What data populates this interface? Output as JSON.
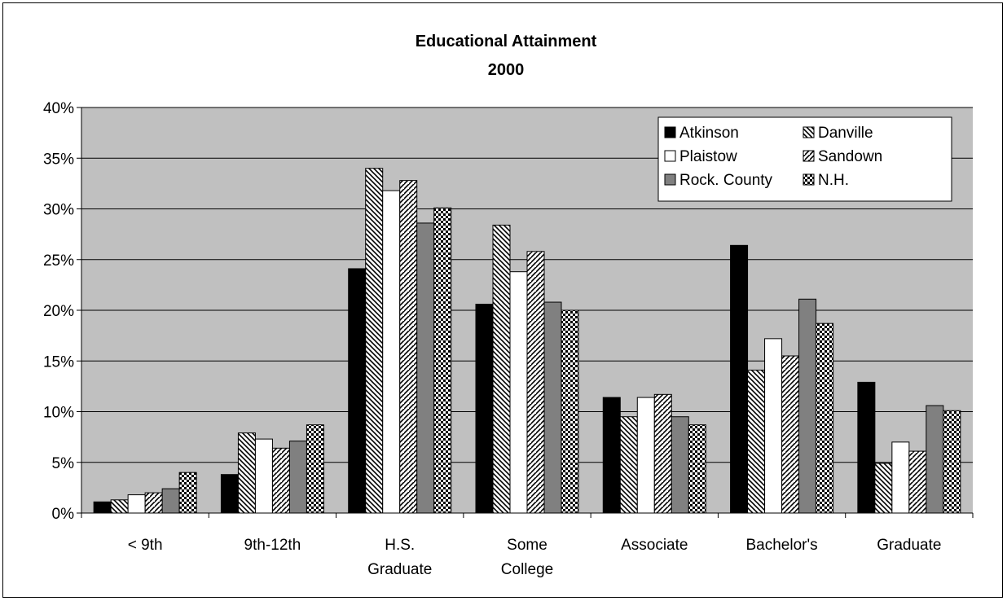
{
  "chart_data": {
    "type": "bar",
    "title": "Educational Attainment",
    "subtitle": "2000",
    "categories": [
      "< 9th",
      "9th-12th",
      "H.S. Graduate",
      "Some College",
      "Associate",
      "Bachelor's",
      "Graduate"
    ],
    "category_lines": [
      [
        "< 9th"
      ],
      [
        "9th-12th"
      ],
      [
        "H.S.",
        "Graduate"
      ],
      [
        "Some",
        "College"
      ],
      [
        "Associate"
      ],
      [
        "Bachelor's"
      ],
      [
        "Graduate"
      ]
    ],
    "ylim": [
      0,
      0.4
    ],
    "yticks": [
      0,
      0.05,
      0.1,
      0.15,
      0.2,
      0.25,
      0.3,
      0.35,
      0.4
    ],
    "ytick_labels": [
      "0%",
      "5%",
      "10%",
      "15%",
      "20%",
      "25%",
      "30%",
      "35%",
      "40%"
    ],
    "grid": true,
    "plot_background": "#c0c0c0",
    "legend_position": "top-right",
    "series": [
      {
        "name": "Atkinson",
        "pattern": "solid-black",
        "values": [
          0.011,
          0.038,
          0.241,
          0.206,
          0.114,
          0.264,
          0.129
        ]
      },
      {
        "name": "Danville",
        "pattern": "back-hatch",
        "values": [
          0.013,
          0.079,
          0.34,
          0.284,
          0.095,
          0.141,
          0.049
        ]
      },
      {
        "name": "Plaistow",
        "pattern": "solid-white",
        "values": [
          0.018,
          0.073,
          0.318,
          0.238,
          0.114,
          0.172,
          0.07
        ]
      },
      {
        "name": "Sandown",
        "pattern": "forward-hatch",
        "values": [
          0.02,
          0.064,
          0.328,
          0.258,
          0.117,
          0.155,
          0.061
        ]
      },
      {
        "name": "Rock. County",
        "pattern": "solid-gray",
        "values": [
          0.024,
          0.071,
          0.286,
          0.208,
          0.095,
          0.211,
          0.106
        ]
      },
      {
        "name": "N.H.",
        "pattern": "checker",
        "values": [
          0.04,
          0.087,
          0.301,
          0.2,
          0.087,
          0.187,
          0.101
        ]
      }
    ]
  }
}
